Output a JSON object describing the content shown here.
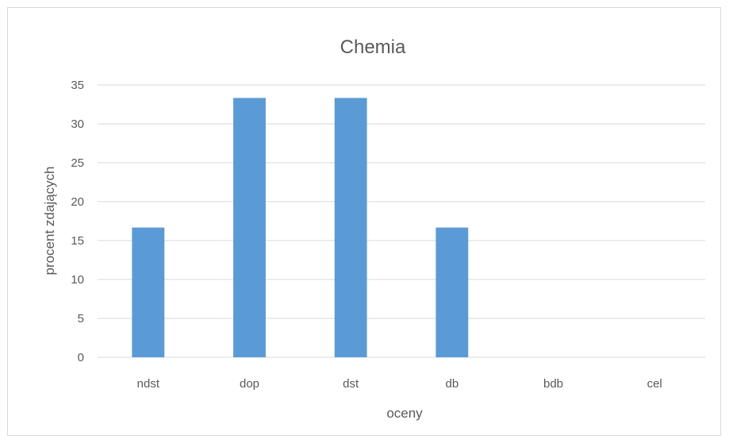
{
  "chart_data": {
    "type": "bar",
    "title": "Chemia",
    "xlabel": "oceny",
    "ylabel": "procent zdających",
    "categories": [
      "ndst",
      "dop",
      "dst",
      "db",
      "bdb",
      "cel"
    ],
    "values": [
      16.67,
      33.33,
      33.33,
      16.67,
      0,
      0
    ],
    "ylim": [
      0,
      35
    ],
    "yticks": [
      0,
      5,
      10,
      15,
      20,
      25,
      30,
      35
    ],
    "grid": true,
    "legend": "none",
    "colors": {
      "bar": "#5b9bd5",
      "grid": "#d9d9d9",
      "text": "#595959"
    }
  }
}
